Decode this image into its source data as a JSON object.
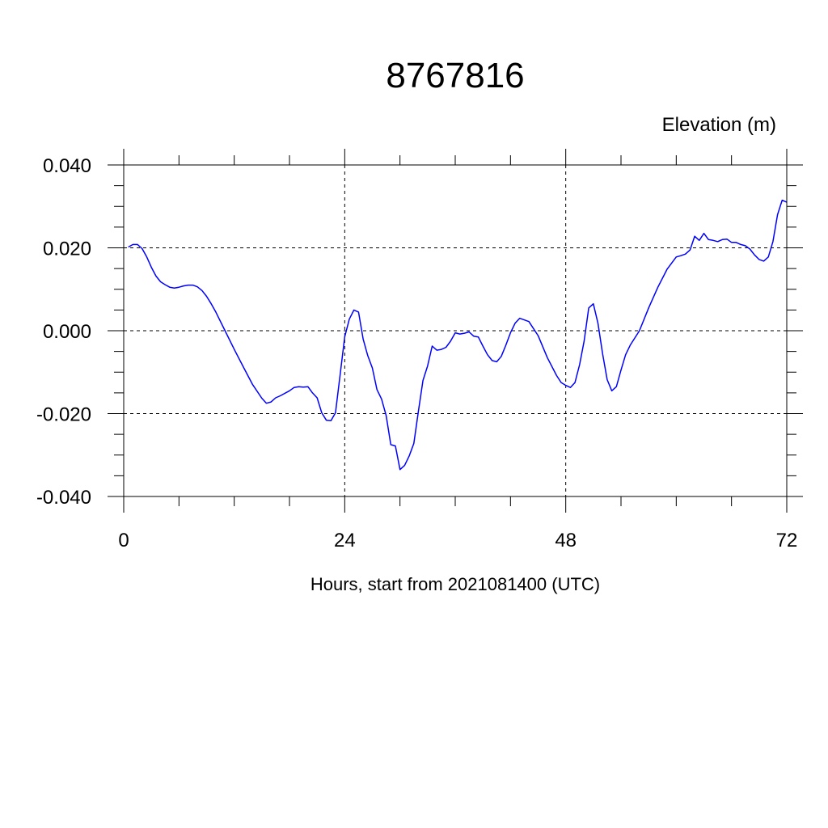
{
  "chart_data": {
    "type": "line",
    "title": "8767816",
    "ylabel": "Elevation (m)",
    "xlabel": "Hours, start from 2021081400 (UTC)",
    "xlim": [
      0,
      72
    ],
    "ylim": [
      -0.04,
      0.04
    ],
    "xticks": [
      0,
      24,
      48,
      72
    ],
    "xtick_labels": [
      "0",
      "24",
      "48",
      "72"
    ],
    "yticks": [
      -0.04,
      -0.02,
      0.0,
      0.02,
      0.04
    ],
    "ytick_labels": [
      "-0.040",
      "-0.020",
      "0.000",
      "0.020",
      "0.040"
    ],
    "grid": "dashed at major ticks",
    "series": [
      {
        "color": "#0000ff",
        "x": [
          0.5,
          1.0,
          1.5,
          2.0,
          2.5,
          3.0,
          3.5,
          4.0,
          4.5,
          5.0,
          5.5,
          6.0,
          6.5,
          7.0,
          7.5,
          8.0,
          8.5,
          9.0,
          9.5,
          10.0,
          11.0,
          12.0,
          13.0,
          14.0,
          15.0,
          15.5,
          16.0,
          16.5,
          17.0,
          18.0,
          18.5,
          19.0,
          19.5,
          20.0,
          20.5,
          21.0,
          21.5,
          22.0,
          22.5,
          23.0,
          23.5,
          24.0,
          24.5,
          25.0,
          25.5,
          26.0,
          26.5,
          27.0,
          27.5,
          28.0,
          28.5,
          29.0,
          29.5,
          30.0,
          30.5,
          31.0,
          31.5,
          32.0,
          32.5,
          33.0,
          33.5,
          34.0,
          34.5,
          35.0,
          35.5,
          36.0,
          36.5,
          37.0,
          37.5,
          38.0,
          38.5,
          39.0,
          39.5,
          40.0,
          40.5,
          41.0,
          41.5,
          42.0,
          42.5,
          43.0,
          44.0,
          45.0,
          46.0,
          47.0,
          47.5,
          48.0,
          48.5,
          49.0,
          49.5,
          50.0,
          50.5,
          51.0,
          51.5,
          52.0,
          52.5,
          53.0,
          53.5,
          54.0,
          54.5,
          55.0,
          56.0,
          57.0,
          58.0,
          59.0,
          60.0,
          60.5,
          61.0,
          61.5,
          62.0,
          62.5,
          63.0,
          63.5,
          64.0,
          64.5,
          65.0,
          65.5,
          66.0,
          66.5,
          67.0,
          67.5,
          68.0,
          68.5,
          69.0,
          69.5,
          70.0,
          70.5,
          71.0,
          71.5,
          72.0
        ],
        "y": [
          0.0202,
          0.0208,
          0.0208,
          0.0198,
          0.0178,
          0.0153,
          0.0132,
          0.0118,
          0.0111,
          0.0105,
          0.0103,
          0.0105,
          0.0108,
          0.011,
          0.011,
          0.0106,
          0.0097,
          0.0083,
          0.0065,
          0.0045,
          0.0,
          -0.0045,
          -0.0088,
          -0.013,
          -0.0163,
          -0.0175,
          -0.0172,
          -0.0162,
          -0.0157,
          -0.0145,
          -0.0137,
          -0.0135,
          -0.0136,
          -0.0135,
          -0.015,
          -0.0162,
          -0.0198,
          -0.0216,
          -0.0217,
          -0.0198,
          -0.0107,
          -0.0015,
          0.0028,
          0.005,
          0.0045,
          -0.002,
          -0.006,
          -0.009,
          -0.0142,
          -0.0165,
          -0.0205,
          -0.0275,
          -0.0278,
          -0.0335,
          -0.0325,
          -0.0302,
          -0.0272,
          -0.0195,
          -0.012,
          -0.0085,
          -0.0037,
          -0.0047,
          -0.0045,
          -0.004,
          -0.0025,
          -0.0005,
          -0.0008,
          -0.0006,
          -0.0003,
          -0.0013,
          -0.0015,
          -0.0037,
          -0.0058,
          -0.0072,
          -0.0075,
          -0.0062,
          -0.0035,
          -0.0005,
          0.0018,
          0.003,
          0.0022,
          -0.0012,
          -0.0065,
          -0.0108,
          -0.0125,
          -0.0132,
          -0.0137,
          -0.0125,
          -0.0082,
          -0.0025,
          0.0055,
          0.0065,
          0.0018,
          -0.0055,
          -0.0118,
          -0.0145,
          -0.0135,
          -0.0095,
          -0.0058,
          -0.0035,
          0.0,
          0.0055,
          0.0105,
          0.0148,
          0.0178,
          0.0181,
          0.0185,
          0.0195,
          0.0228,
          0.0218,
          0.0235,
          0.022,
          0.0218,
          0.0215,
          0.022,
          0.0221,
          0.0213,
          0.0213,
          0.0208,
          0.0205,
          0.0197,
          0.0183,
          0.0172,
          0.0168,
          0.0178,
          0.0215,
          0.028,
          0.0315,
          0.031
        ]
      }
    ]
  }
}
